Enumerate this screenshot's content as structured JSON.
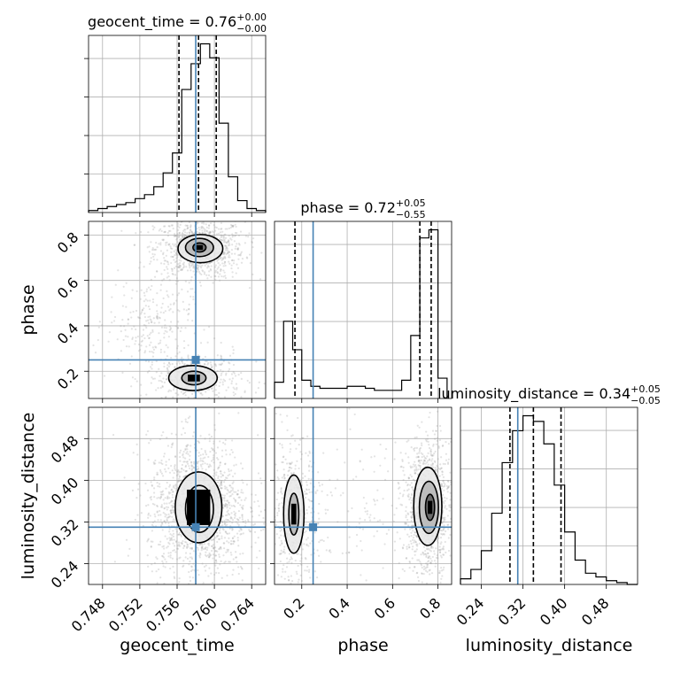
{
  "chart_data": {
    "type": "corner",
    "parameters": [
      {
        "name": "geocent_time",
        "axis_label": "geocent_time",
        "title": "geocent_time = 0.76",
        "median_text": "0.76",
        "err_plus": "+0.00",
        "err_minus": "−0.00",
        "range": [
          0.7465,
          0.7655
        ],
        "ticks": [
          0.748,
          0.752,
          0.756,
          0.76,
          0.764
        ],
        "tick_labels": [
          "0.748",
          "0.752",
          "0.756",
          "0.760",
          "0.764"
        ],
        "truth": 0.758,
        "quantiles": [
          0.7562,
          0.7583,
          0.7602
        ],
        "hist": {
          "edges": [
            0.7465,
            0.7475,
            0.7485,
            0.7495,
            0.7505,
            0.7515,
            0.7525,
            0.7535,
            0.7545,
            0.7555,
            0.7565,
            0.7575,
            0.7585,
            0.7595,
            0.7605,
            0.7615,
            0.7625,
            0.7635,
            0.7645,
            0.7655
          ],
          "counts": [
            1,
            2,
            3,
            4,
            5,
            7,
            9,
            13,
            20,
            30,
            62,
            75,
            85,
            78,
            45,
            18,
            6,
            2,
            1
          ]
        }
      },
      {
        "name": "phase",
        "axis_label": "phase",
        "title": "phase = 0.72",
        "median_text": "0.72",
        "err_plus": "+0.05",
        "err_minus": "−0.55",
        "range": [
          0.08,
          0.86
        ],
        "ticks": [
          0.2,
          0.4,
          0.6,
          0.8
        ],
        "tick_labels": [
          "0.2",
          "0.4",
          "0.6",
          "0.8"
        ],
        "row_ticks": [
          0.2,
          0.4,
          0.6,
          0.8
        ],
        "row_tick_labels": [
          "0.2",
          "0.4",
          "0.6",
          "0.8"
        ],
        "truth": 0.25,
        "quantiles": [
          0.17,
          0.72,
          0.77
        ],
        "hist": {
          "edges": [
            0.08,
            0.12,
            0.16,
            0.2,
            0.24,
            0.28,
            0.32,
            0.36,
            0.4,
            0.44,
            0.48,
            0.52,
            0.56,
            0.6,
            0.64,
            0.68,
            0.72,
            0.76,
            0.8,
            0.84
          ],
          "counts": [
            8,
            38,
            24,
            9,
            6,
            5,
            5,
            5,
            6,
            6,
            5,
            4,
            4,
            4,
            9,
            31,
            79,
            83,
            10
          ]
        }
      },
      {
        "name": "luminosity_distance",
        "axis_label": "luminosity_distance",
        "title": "luminosity_distance = 0.34",
        "median_text": "0.34",
        "err_plus": "+0.05",
        "err_minus": "−0.05",
        "range": [
          0.2,
          0.54
        ],
        "ticks": [
          0.24,
          0.32,
          0.4,
          0.48
        ],
        "tick_labels": [
          "0.24",
          "0.32",
          "0.40",
          "0.48"
        ],
        "row_ticks": [
          0.24,
          0.32,
          0.4,
          0.48
        ],
        "row_tick_labels": [
          "0.24",
          "0.32",
          "0.40",
          "0.48"
        ],
        "truth": 0.31,
        "quantiles": [
          0.295,
          0.34,
          0.393
        ],
        "hist": {
          "edges": [
            0.2,
            0.22,
            0.24,
            0.26,
            0.28,
            0.3,
            0.32,
            0.34,
            0.36,
            0.38,
            0.4,
            0.42,
            0.44,
            0.46,
            0.48,
            0.5,
            0.52,
            0.54
          ],
          "counts": [
            3,
            8,
            18,
            38,
            65,
            82,
            90,
            87,
            75,
            53,
            28,
            13,
            6,
            4,
            2,
            1,
            0
          ]
        }
      }
    ],
    "panels_2d": [
      {
        "x": "geocent_time",
        "y": "phase",
        "truth": [
          0.758,
          0.25
        ],
        "blobs": [
          {
            "cx": 0.7584,
            "cy": 0.74,
            "sx": 0.0016,
            "sy": 0.045,
            "n": 900
          },
          {
            "cx": 0.7578,
            "cy": 0.17,
            "sx": 0.0017,
            "sy": 0.04,
            "n": 450
          },
          {
            "cx": 0.753,
            "cy": 0.42,
            "sx": 0.0015,
            "sy": 0.06,
            "n": 220
          }
        ],
        "contours": [
          {
            "cx": 0.7584,
            "cy": 0.745,
            "rx": 0.0007,
            "ry": 0.02
          },
          {
            "cx": 0.7584,
            "cy": 0.745,
            "rx": 0.0015,
            "ry": 0.04
          },
          {
            "cx": 0.7585,
            "cy": 0.74,
            "rx": 0.0024,
            "ry": 0.062
          },
          {
            "cx": 0.7578,
            "cy": 0.17,
            "rx": 0.0013,
            "ry": 0.03
          },
          {
            "cx": 0.7577,
            "cy": 0.17,
            "rx": 0.0026,
            "ry": 0.055
          }
        ]
      },
      {
        "x": "geocent_time",
        "y": "luminosity_distance",
        "truth": [
          0.758,
          0.31
        ],
        "blobs": [
          {
            "cx": 0.7583,
            "cy": 0.345,
            "sx": 0.0018,
            "sy": 0.045,
            "n": 1500
          }
        ],
        "contours": [
          {
            "cx": 0.7584,
            "cy": 0.345,
            "rx": 0.0007,
            "ry": 0.02
          },
          {
            "cx": 0.7584,
            "cy": 0.345,
            "rx": 0.0015,
            "ry": 0.045
          },
          {
            "cx": 0.7583,
            "cy": 0.348,
            "rx": 0.0025,
            "ry": 0.068
          }
        ]
      },
      {
        "x": "phase",
        "y": "luminosity_distance",
        "truth": [
          0.25,
          0.31
        ],
        "blobs": [
          {
            "cx": 0.755,
            "cy": 0.345,
            "sx": 0.035,
            "sy": 0.045,
            "n": 1000
          },
          {
            "cx": 0.165,
            "cy": 0.335,
            "sx": 0.035,
            "sy": 0.045,
            "n": 450
          },
          {
            "cx": 0.45,
            "cy": 0.34,
            "sx": 0.15,
            "sy": 0.05,
            "n": 180
          }
        ],
        "contours": [
          {
            "cx": 0.765,
            "cy": 0.348,
            "rx": 0.02,
            "ry": 0.025
          },
          {
            "cx": 0.76,
            "cy": 0.348,
            "rx": 0.042,
            "ry": 0.05
          },
          {
            "cx": 0.755,
            "cy": 0.35,
            "rx": 0.062,
            "ry": 0.075
          },
          {
            "cx": 0.165,
            "cy": 0.335,
            "rx": 0.022,
            "ry": 0.04
          },
          {
            "cx": 0.165,
            "cy": 0.335,
            "rx": 0.045,
            "ry": 0.075
          }
        ]
      }
    ],
    "grid": true
  }
}
